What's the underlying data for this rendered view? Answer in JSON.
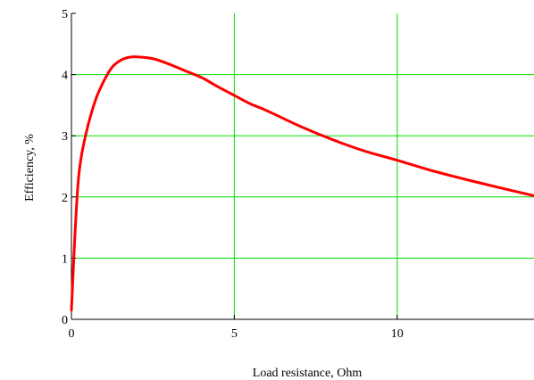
{
  "chart_data": {
    "type": "line",
    "xlabel": "Load resistance, Ohm",
    "ylabel": "Efficiency, %",
    "xlim": [
      0,
      14.2
    ],
    "ylim": [
      0,
      5
    ],
    "x_ticks": [
      0,
      5,
      10
    ],
    "y_ticks": [
      0,
      1,
      2,
      3,
      4,
      5
    ],
    "x_tick_labels": [
      "0",
      "5",
      "10"
    ],
    "y_tick_labels": [
      "0",
      "1",
      "2",
      "3",
      "4",
      "5"
    ],
    "grid": true,
    "legend": "none",
    "series": [
      {
        "color": "#ff0000",
        "x": [
          0,
          0.1,
          0.2,
          0.3,
          0.5,
          0.75,
          1.0,
          1.25,
          1.5,
          1.75,
          2.0,
          2.5,
          3.0,
          3.5,
          4.0,
          4.5,
          5.0,
          5.5,
          6.0,
          7.0,
          8.0,
          9.0,
          10.0,
          11.0,
          12.0,
          13.0,
          14.2
        ],
        "y": [
          0.15,
          1.3,
          2.2,
          2.65,
          3.15,
          3.6,
          3.9,
          4.12,
          4.23,
          4.28,
          4.29,
          4.26,
          4.17,
          4.06,
          3.95,
          3.8,
          3.66,
          3.52,
          3.41,
          3.16,
          2.94,
          2.75,
          2.6,
          2.44,
          2.3,
          2.17,
          2.02
        ]
      }
    ]
  },
  "colors": {
    "grid": "#00e000",
    "axis": "#000000",
    "series": "#ff0000",
    "background": "#ffffff"
  }
}
